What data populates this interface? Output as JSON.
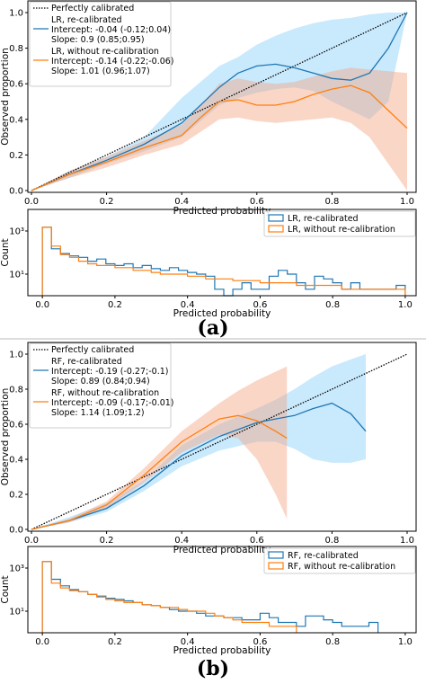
{
  "panel_labels": [
    "(a)",
    "(b)"
  ],
  "colors": {
    "blue": "#1f77b4",
    "lightblue": "#87cefa",
    "orange": "#ff7f0e",
    "peach": "#f4a582"
  },
  "chart_data": [
    {
      "type": "line",
      "panel": "a",
      "xlabel": "Predicted probability",
      "ylabel": "Observed proportion",
      "xlim": [
        0,
        1.0
      ],
      "ylim": [
        0,
        1.0
      ],
      "xticks": [
        "0.0",
        "0.2",
        "0.4",
        "0.6",
        "0.8",
        "1.0"
      ],
      "yticks": [
        "0.0",
        "0.2",
        "0.4",
        "0.6",
        "0.8",
        "1.0"
      ],
      "legend_position": "top-left",
      "reference": {
        "name": "Perfectly calibrated",
        "x": [
          0,
          1
        ],
        "y": [
          0,
          1
        ]
      },
      "series": [
        {
          "name": "LR, re-calibrated",
          "details": [
            "Intercept: -0.04 (-0.12;0.04)",
            "Slope: 0.9 (0.85;0.95)"
          ],
          "color": "blue",
          "x": [
            0.0,
            0.1,
            0.2,
            0.3,
            0.4,
            0.5,
            0.55,
            0.6,
            0.65,
            0.7,
            0.75,
            0.8,
            0.85,
            0.9,
            0.95,
            1.0
          ],
          "y": [
            0.0,
            0.09,
            0.17,
            0.26,
            0.38,
            0.58,
            0.66,
            0.7,
            0.71,
            0.69,
            0.66,
            0.63,
            0.62,
            0.66,
            0.8,
            1.0
          ],
          "lower": [
            0.0,
            0.07,
            0.15,
            0.22,
            0.3,
            0.48,
            0.52,
            0.55,
            0.57,
            0.58,
            0.56,
            0.5,
            0.45,
            0.4,
            0.5,
            1.0
          ],
          "upper": [
            0.0,
            0.11,
            0.19,
            0.3,
            0.52,
            0.7,
            0.75,
            0.82,
            0.87,
            0.91,
            0.94,
            0.96,
            0.97,
            0.99,
            1.0,
            1.0
          ]
        },
        {
          "name": "LR, without re-calibration",
          "details": [
            "Intercept: -0.14 (-0.22;-0.06)",
            "Slope: 1.01 (0.96;1.07)"
          ],
          "color": "orange",
          "x": [
            0.0,
            0.1,
            0.2,
            0.3,
            0.4,
            0.45,
            0.5,
            0.55,
            0.6,
            0.65,
            0.7,
            0.75,
            0.8,
            0.85,
            0.9,
            0.95,
            1.0
          ],
          "y": [
            0.0,
            0.09,
            0.16,
            0.24,
            0.31,
            0.41,
            0.5,
            0.51,
            0.48,
            0.48,
            0.5,
            0.54,
            0.57,
            0.59,
            0.55,
            0.45,
            0.35
          ],
          "lower": [
            0.0,
            0.07,
            0.13,
            0.2,
            0.26,
            0.33,
            0.4,
            0.41,
            0.39,
            0.38,
            0.39,
            0.4,
            0.41,
            0.38,
            0.3,
            0.15,
            0.0
          ],
          "upper": [
            0.0,
            0.11,
            0.19,
            0.28,
            0.37,
            0.48,
            0.6,
            0.63,
            0.61,
            0.6,
            0.61,
            0.64,
            0.67,
            0.69,
            0.68,
            0.67,
            0.66
          ]
        }
      ]
    },
    {
      "type": "histogram",
      "panel": "a",
      "xlabel": "Predicted probability",
      "ylabel": "Count",
      "xlim": [
        -0.04,
        1.03
      ],
      "xticks": [
        "0.0",
        "0.2",
        "0.4",
        "0.6",
        "0.8",
        "1.0"
      ],
      "yticks": [
        "10¹",
        "10³"
      ],
      "y_scale": "log",
      "ylim": [
        1,
        10000
      ],
      "legend_position": "top-right",
      "bin_width": 0.025,
      "series": [
        {
          "name": "LR, re-calibrated",
          "color": "blue",
          "counts": [
            1500,
            150,
            90,
            70,
            60,
            40,
            50,
            30,
            25,
            30,
            20,
            25,
            18,
            15,
            20,
            15,
            12,
            10,
            8,
            2,
            1,
            2,
            4,
            2,
            2,
            8,
            15,
            10,
            4,
            2,
            8,
            6,
            4,
            2,
            4,
            2,
            2,
            2,
            2,
            3
          ]
        },
        {
          "name": "LR, without re-calibration",
          "color": "orange",
          "counts": [
            1500,
            200,
            80,
            60,
            40,
            30,
            25,
            25,
            20,
            20,
            15,
            15,
            12,
            10,
            10,
            10,
            8,
            8,
            6,
            6,
            6,
            5,
            5,
            5,
            4,
            4,
            4,
            4,
            3,
            3,
            3,
            3,
            3,
            2,
            2,
            2,
            2,
            2,
            2,
            2
          ]
        }
      ]
    },
    {
      "type": "line",
      "panel": "b",
      "xlabel": "Predicted probability",
      "ylabel": "Observed proportion",
      "xlim": [
        0,
        1.0
      ],
      "ylim": [
        0,
        1.0
      ],
      "xticks": [
        "0.0",
        "0.2",
        "0.4",
        "0.6",
        "0.8",
        "1.0"
      ],
      "yticks": [
        "0.0",
        "0.2",
        "0.4",
        "0.6",
        "0.8",
        "1.0"
      ],
      "legend_position": "top-left",
      "reference": {
        "name": "Perfectly calibrated",
        "x": [
          0,
          1
        ],
        "y": [
          0,
          1
        ]
      },
      "series": [
        {
          "name": "RF, re-calibrated",
          "details": [
            "Intercept: -0.19 (-0.27;-0.1)",
            "Slope: 0.89 (0.84;0.94)"
          ],
          "color": "blue",
          "x": [
            0.0,
            0.1,
            0.2,
            0.3,
            0.4,
            0.5,
            0.6,
            0.65,
            0.7,
            0.75,
            0.8,
            0.85,
            0.89
          ],
          "y": [
            0.0,
            0.05,
            0.12,
            0.25,
            0.42,
            0.53,
            0.61,
            0.63,
            0.65,
            0.69,
            0.72,
            0.66,
            0.56
          ],
          "lower": [
            0.0,
            0.04,
            0.1,
            0.22,
            0.36,
            0.45,
            0.5,
            0.5,
            0.46,
            0.4,
            0.38,
            0.38,
            0.4
          ],
          "upper": [
            0.0,
            0.07,
            0.15,
            0.28,
            0.48,
            0.6,
            0.69,
            0.74,
            0.8,
            0.87,
            0.93,
            0.97,
            1.0
          ]
        },
        {
          "name": "RF, without re-calibration",
          "details": [
            "Intercept: -0.09 (-0.17;-0.01)",
            "Slope: 1.14 (1.09;1.2)"
          ],
          "color": "orange",
          "x": [
            0.0,
            0.1,
            0.2,
            0.3,
            0.4,
            0.5,
            0.55,
            0.6,
            0.65,
            0.68
          ],
          "y": [
            0.0,
            0.05,
            0.14,
            0.31,
            0.5,
            0.63,
            0.65,
            0.62,
            0.56,
            0.52
          ],
          "lower": [
            0.0,
            0.04,
            0.12,
            0.27,
            0.44,
            0.54,
            0.52,
            0.4,
            0.2,
            0.06
          ],
          "upper": [
            0.0,
            0.06,
            0.16,
            0.35,
            0.56,
            0.72,
            0.79,
            0.85,
            0.9,
            0.93
          ]
        }
      ]
    },
    {
      "type": "histogram",
      "panel": "b",
      "xlabel": "Predicted probability",
      "ylabel": "Count",
      "xlim": [
        -0.04,
        1.03
      ],
      "xticks": [
        "0.0",
        "0.2",
        "0.4",
        "0.6",
        "0.8",
        "1.0"
      ],
      "yticks": [
        "10¹",
        "10³"
      ],
      "y_scale": "log",
      "ylim": [
        1,
        10000
      ],
      "legend_position": "top-right",
      "bin_width": 0.025,
      "series": [
        {
          "name": "RF, re-calibrated",
          "color": "blue",
          "counts": [
            2000,
            300,
            150,
            100,
            80,
            60,
            50,
            40,
            35,
            30,
            25,
            20,
            18,
            15,
            12,
            10,
            10,
            8,
            6,
            6,
            5,
            5,
            4,
            4,
            8,
            5,
            3,
            3,
            2,
            6,
            6,
            4,
            3,
            2,
            2,
            2,
            3
          ]
        },
        {
          "name": "RF, without re-calibration",
          "color": "orange",
          "counts": [
            2000,
            200,
            120,
            90,
            80,
            60,
            45,
            35,
            30,
            25,
            25,
            20,
            18,
            15,
            15,
            12,
            10,
            10,
            8,
            6,
            5,
            4,
            3,
            3,
            3,
            2,
            2,
            2
          ]
        }
      ]
    }
  ]
}
